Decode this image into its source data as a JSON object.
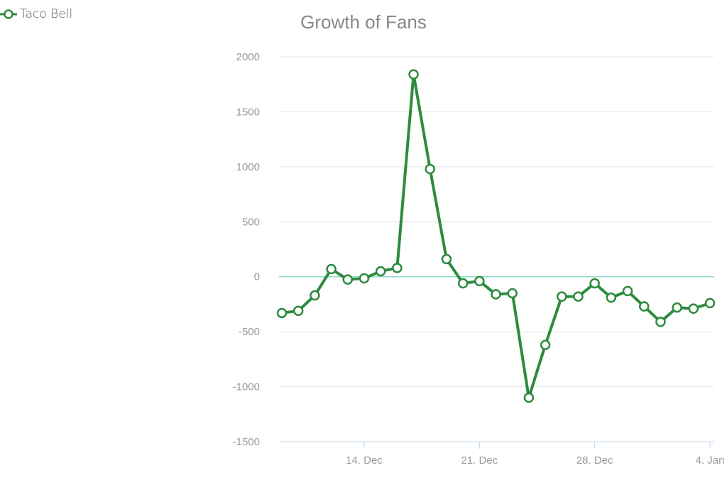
{
  "chart_data": {
    "type": "line",
    "title": "Growth of Fans",
    "xlabel": "",
    "ylabel": "",
    "ylim": [
      -1500,
      2000
    ],
    "y_ticks": [
      "2000",
      "1500",
      "1000",
      "500",
      "0",
      "-500",
      "-1000",
      "-1500"
    ],
    "x_tick_labels": [
      "14. Dec",
      "21. Dec",
      "28. Dec",
      "4. Jan"
    ],
    "x_ticks": [
      "2014-12-14",
      "2014-12-21",
      "2014-12-28",
      "2015-01-04"
    ],
    "x": [
      "2014-12-09",
      "2014-12-10",
      "2014-12-11",
      "2014-12-12",
      "2014-12-13",
      "2014-12-14",
      "2014-12-15",
      "2014-12-16",
      "2014-12-17",
      "2014-12-18",
      "2014-12-19",
      "2014-12-20",
      "2014-12-21",
      "2014-12-22",
      "2014-12-23",
      "2014-12-24",
      "2014-12-25",
      "2014-12-26",
      "2014-12-27",
      "2014-12-28",
      "2014-12-29",
      "2014-12-30",
      "2014-12-31",
      "2015-01-01",
      "2015-01-02",
      "2015-01-03",
      "2015-01-04"
    ],
    "series": [
      {
        "name": "Taco Bell",
        "color": "#2e8b3e",
        "values": [
          -330,
          -310,
          -170,
          70,
          -25,
          -15,
          50,
          80,
          1840,
          980,
          160,
          -60,
          -40,
          -160,
          -150,
          -1100,
          -620,
          -180,
          -180,
          -60,
          -190,
          -130,
          -270,
          -410,
          -280,
          -290,
          -240
        ]
      }
    ],
    "zero_line_color": "#8fdcc8",
    "grid": true,
    "legend": "top-left"
  }
}
